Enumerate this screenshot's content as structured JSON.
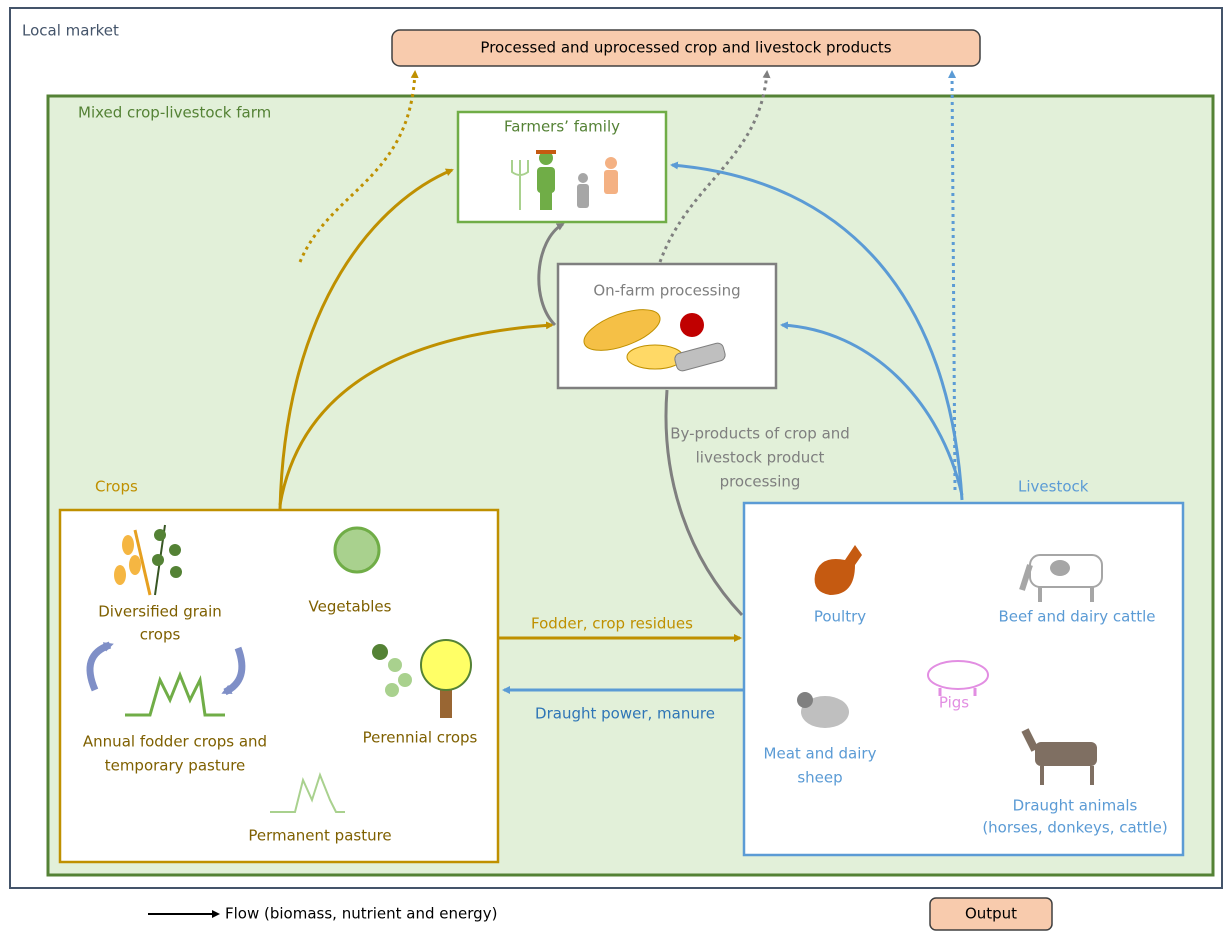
{
  "market": {
    "label": "Local market",
    "output": "Processed and uprocessed crop and livestock products"
  },
  "farm": {
    "label": "Mixed crop-livestock farm"
  },
  "nodes": {
    "family": "Farmers’ family",
    "processing": "On-farm processing"
  },
  "flows": {
    "byproducts": [
      "By-products of crop and",
      "livestock product",
      "processing"
    ],
    "fodder": "Fodder, crop residues",
    "draught": "Draught power, manure"
  },
  "crops": {
    "label": "Crops",
    "items": [
      [
        "Diversified grain",
        "crops"
      ],
      [
        "Vegetables"
      ],
      [
        "Annual fodder crops and",
        "temporary pasture"
      ],
      [
        "Perennial crops"
      ],
      [
        "Permanent pasture"
      ]
    ]
  },
  "livestock": {
    "label": "Livestock",
    "items": [
      [
        "Poultry"
      ],
      [
        "Beef and dairy cattle"
      ],
      [
        "Pigs"
      ],
      [
        "Meat and dairy",
        "sheep"
      ],
      [
        "Draught animals",
        "(horses, donkeys, cattle)"
      ]
    ]
  },
  "legend": {
    "flow": "Flow (biomass, nutrient and energy)",
    "output": "Output"
  }
}
